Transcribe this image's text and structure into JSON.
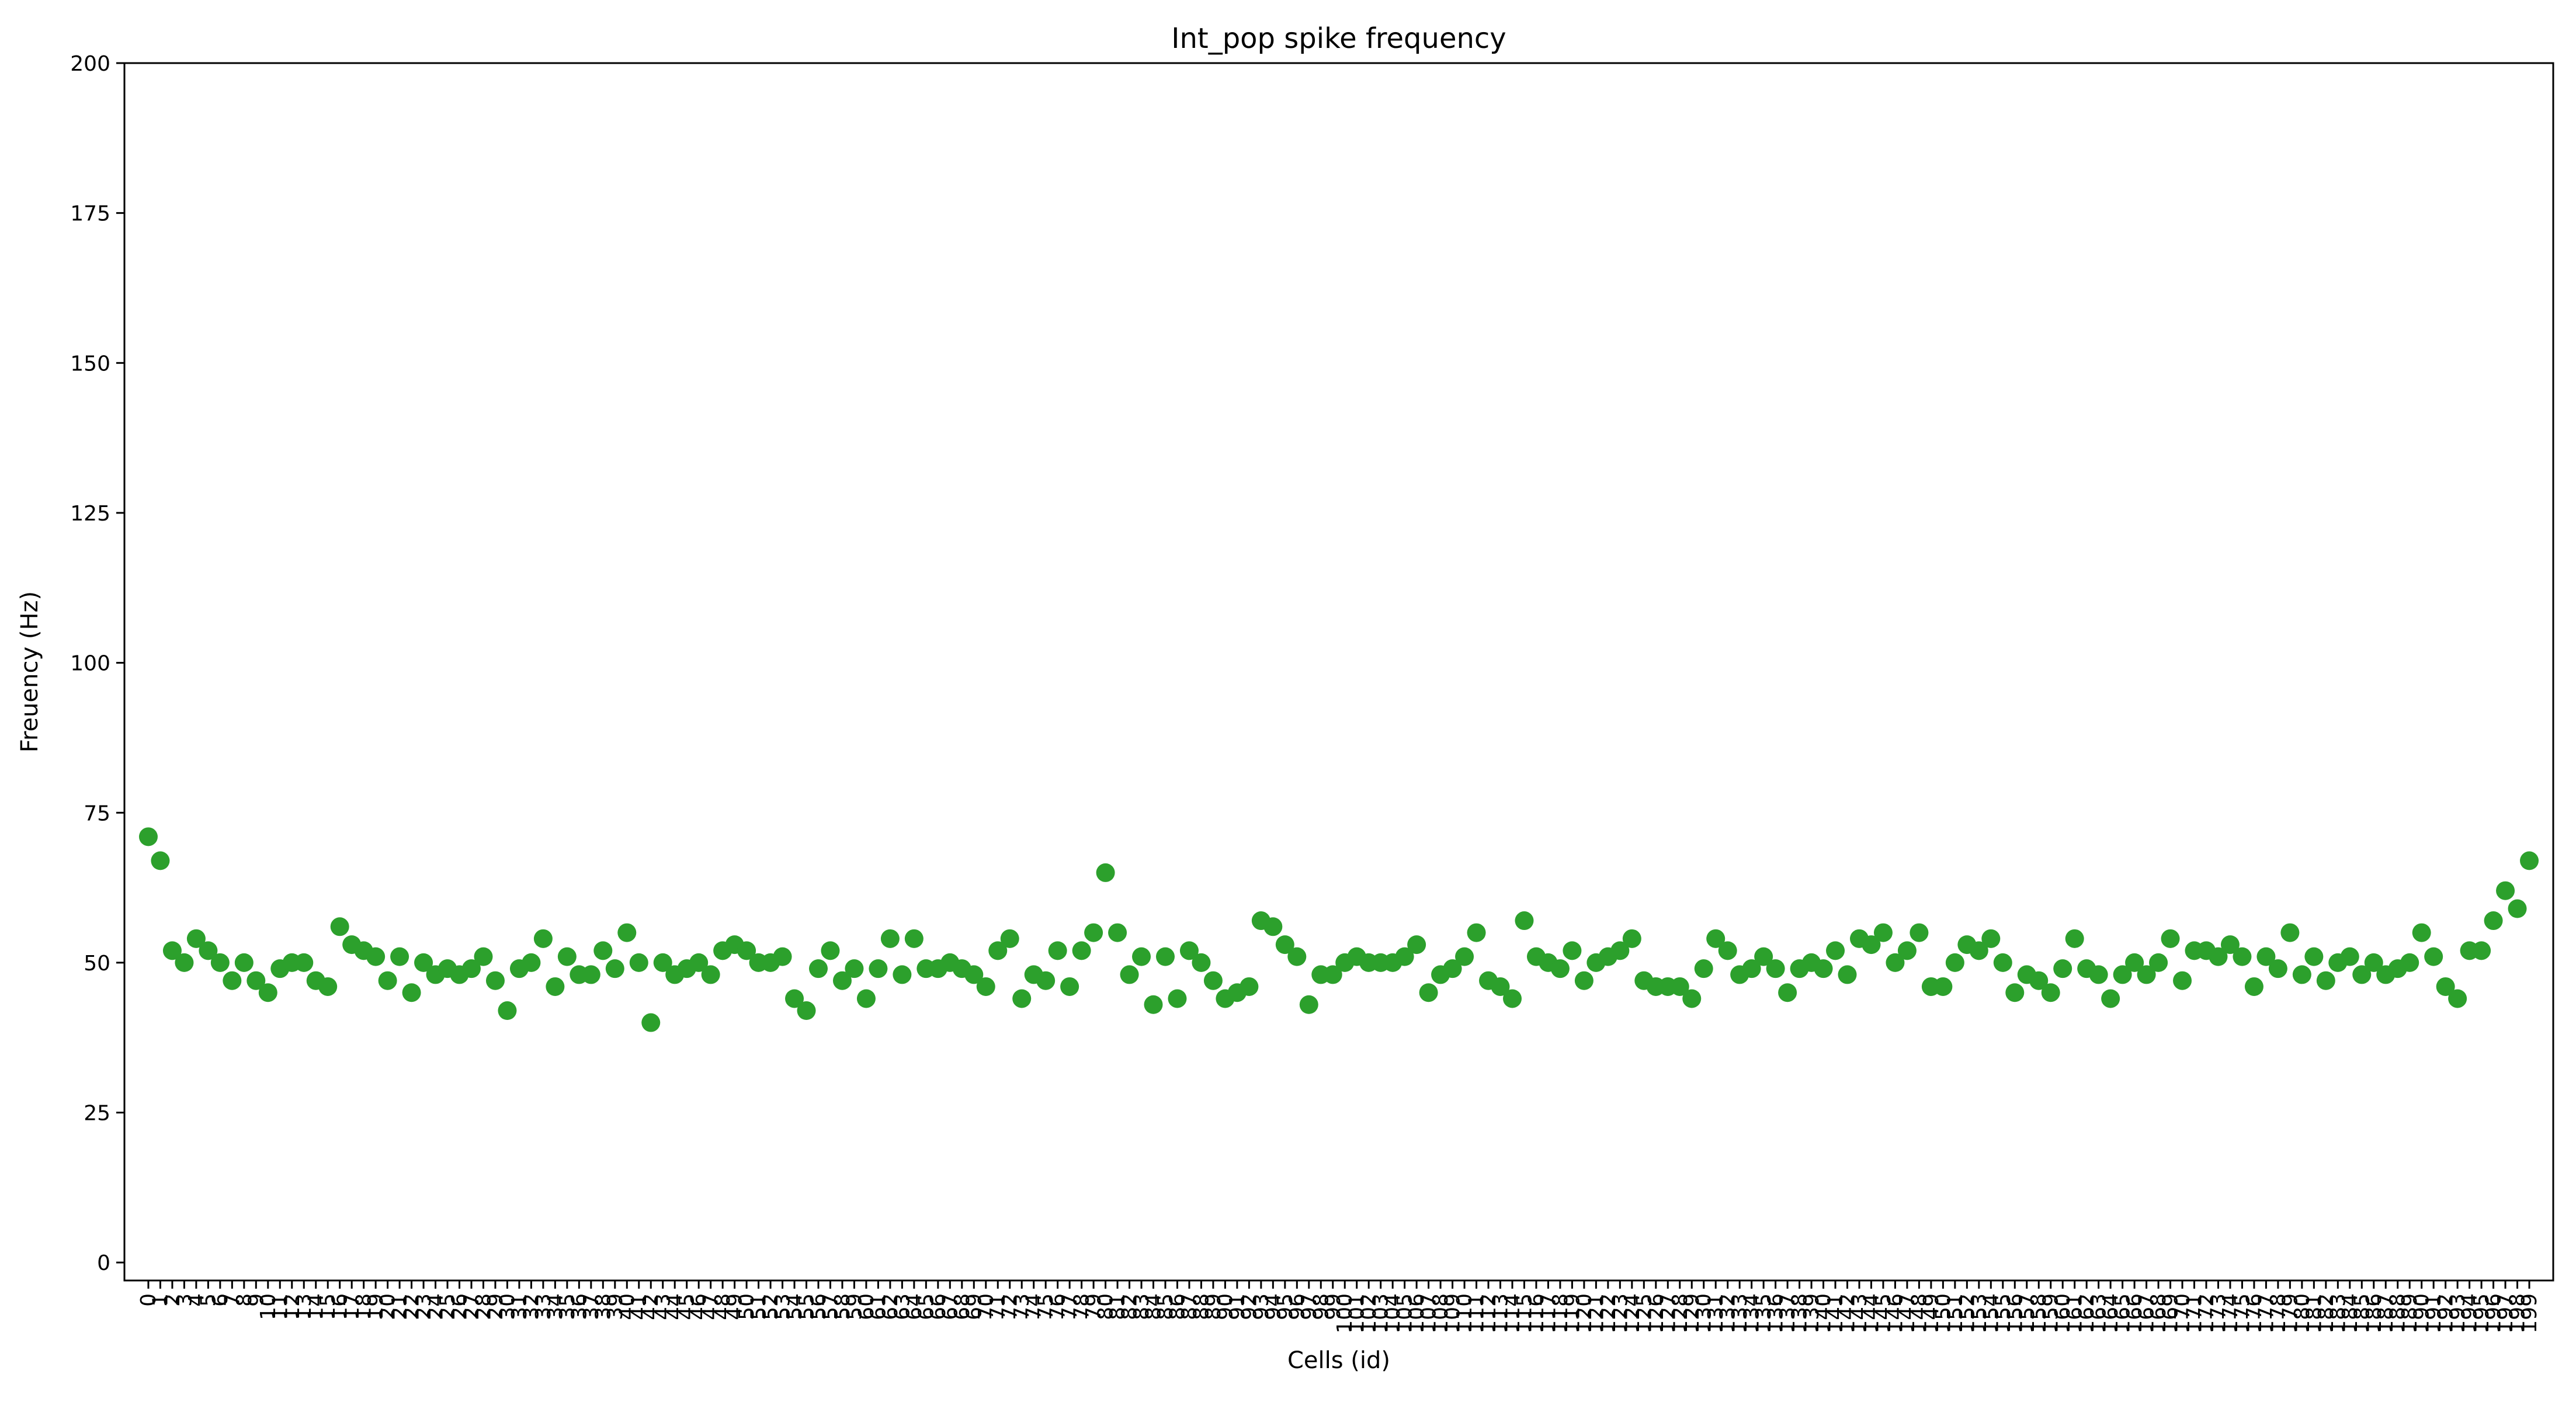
{
  "chart_data": {
    "type": "scatter",
    "title": "Int_pop spike frequency",
    "xlabel": "Cells (id)",
    "ylabel": "Freuency (Hz)",
    "xlim": [
      -2,
      201
    ],
    "ylim": [
      -3,
      200
    ],
    "yticks": [
      0,
      25,
      50,
      75,
      100,
      125,
      150,
      175,
      200
    ],
    "xticks_every": 1,
    "x_tick_rotation": 90,
    "grid": false,
    "legend": "none",
    "marker_color": "#2ca02c",
    "x": [
      0,
      1,
      2,
      3,
      4,
      5,
      6,
      7,
      8,
      9,
      10,
      11,
      12,
      13,
      14,
      15,
      16,
      17,
      18,
      19,
      20,
      21,
      22,
      23,
      24,
      25,
      26,
      27,
      28,
      29,
      30,
      31,
      32,
      33,
      34,
      35,
      36,
      37,
      38,
      39,
      40,
      41,
      42,
      43,
      44,
      45,
      46,
      47,
      48,
      49,
      50,
      51,
      52,
      53,
      54,
      55,
      56,
      57,
      58,
      59,
      60,
      61,
      62,
      63,
      64,
      65,
      66,
      67,
      68,
      69,
      70,
      71,
      72,
      73,
      74,
      75,
      76,
      77,
      78,
      79,
      80,
      81,
      82,
      83,
      84,
      85,
      86,
      87,
      88,
      89,
      90,
      91,
      92,
      93,
      94,
      95,
      96,
      97,
      98,
      99,
      100,
      101,
      102,
      103,
      104,
      105,
      106,
      107,
      108,
      109,
      110,
      111,
      112,
      113,
      114,
      115,
      116,
      117,
      118,
      119,
      120,
      121,
      122,
      123,
      124,
      125,
      126,
      127,
      128,
      129,
      130,
      131,
      132,
      133,
      134,
      135,
      136,
      137,
      138,
      139,
      140,
      141,
      142,
      143,
      144,
      145,
      146,
      147,
      148,
      149,
      150,
      151,
      152,
      153,
      154,
      155,
      156,
      157,
      158,
      159,
      160,
      161,
      162,
      163,
      164,
      165,
      166,
      167,
      168,
      169,
      170,
      171,
      172,
      173,
      174,
      175,
      176,
      177,
      178,
      179,
      180,
      181,
      182,
      183,
      184,
      185,
      186,
      187,
      188,
      189,
      190,
      191,
      192,
      193,
      194,
      195,
      196,
      197,
      198,
      199
    ],
    "y": [
      71,
      67,
      52,
      50,
      54,
      52,
      50,
      47,
      50,
      47,
      45,
      49,
      50,
      50,
      47,
      46,
      56,
      53,
      52,
      51,
      47,
      51,
      45,
      50,
      48,
      49,
      48,
      49,
      51,
      47,
      42,
      49,
      50,
      54,
      46,
      51,
      48,
      48,
      52,
      49,
      55,
      50,
      40,
      50,
      48,
      49,
      50,
      48,
      52,
      53,
      52,
      50,
      50,
      51,
      44,
      42,
      49,
      52,
      47,
      49,
      44,
      49,
      54,
      48,
      54,
      49,
      49,
      50,
      49,
      48,
      46,
      52,
      54,
      44,
      48,
      47,
      52,
      46,
      52,
      55,
      65,
      55,
      48,
      51,
      43,
      51,
      44,
      52,
      50,
      47,
      44,
      45,
      46,
      57,
      56,
      53,
      51,
      43,
      48,
      48,
      50,
      51,
      50,
      50,
      50,
      51,
      53,
      45,
      48,
      49,
      51,
      55,
      47,
      46,
      44,
      57,
      51,
      50,
      49,
      52,
      47,
      50,
      51,
      52,
      54,
      47,
      46,
      46,
      46,
      44,
      49,
      54,
      52,
      48,
      49,
      51,
      49,
      45,
      49,
      50,
      49,
      52,
      48,
      54,
      53,
      55,
      50,
      52,
      55,
      46,
      46,
      50,
      53,
      52,
      54,
      50,
      45,
      48,
      47,
      45,
      49,
      54,
      49,
      48,
      44,
      48,
      50,
      48,
      50,
      54,
      47,
      52,
      52,
      51,
      53,
      51,
      46,
      51,
      49,
      55,
      48,
      51,
      47,
      50,
      51,
      48,
      50,
      48,
      49,
      50,
      55,
      51,
      46,
      44,
      52,
      52,
      57,
      62,
      59,
      67
    ]
  }
}
